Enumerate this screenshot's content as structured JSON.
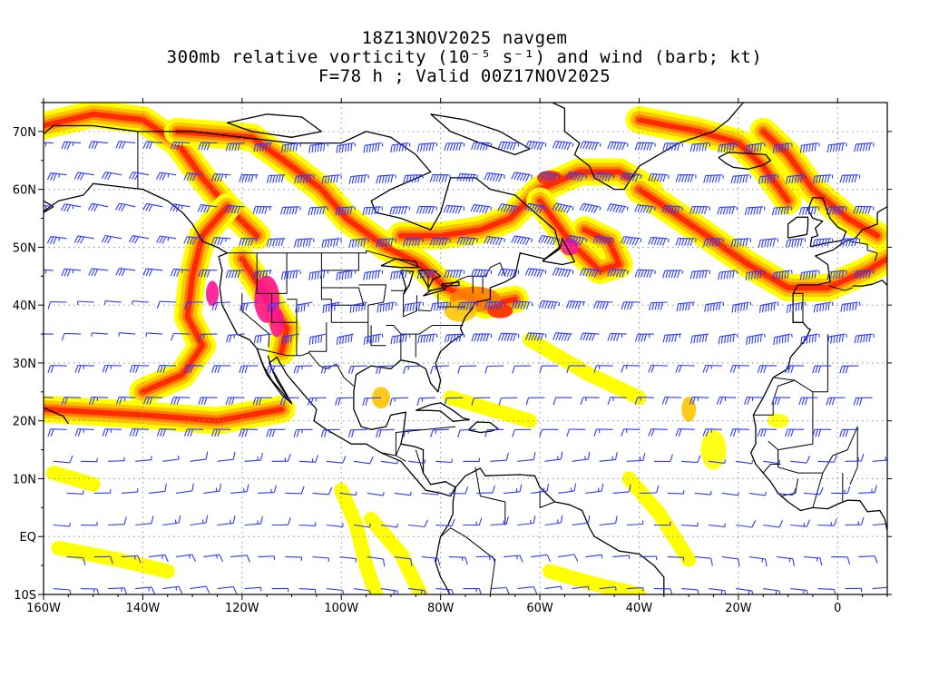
{
  "title": {
    "line1": "18Z13NOV2025 navgem",
    "line2": "300mb relative vorticity (10⁻⁵ s⁻¹) and wind (barb; kt)",
    "line3": "F=78 h ; Valid 00Z17NOV2025"
  },
  "axes": {
    "x_labels": [
      "160W",
      "140W",
      "120W",
      "100W",
      "80W",
      "60W",
      "40W",
      "20W",
      "0"
    ],
    "x_values": [
      -160,
      -140,
      -120,
      -100,
      -80,
      -60,
      -40,
      -20,
      0
    ],
    "y_labels": [
      "70N",
      "60N",
      "50N",
      "40N",
      "30N",
      "20N",
      "10N",
      "EQ",
      "10S"
    ],
    "y_values": [
      70,
      60,
      50,
      40,
      30,
      20,
      10,
      0,
      -10
    ],
    "lon_range": [
      -160,
      10
    ],
    "lat_range": [
      -10,
      75
    ],
    "grid": "dotted"
  },
  "colors": {
    "vort_low": "#ffff00",
    "vort_mid": "#ffc400",
    "vort_high": "#ff7f00",
    "vort_higher": "#ff2a00",
    "vort_max": "#ff1493",
    "barb": "#2a3bff",
    "coast": "#000000",
    "grid": "#9a9a9a"
  }
}
